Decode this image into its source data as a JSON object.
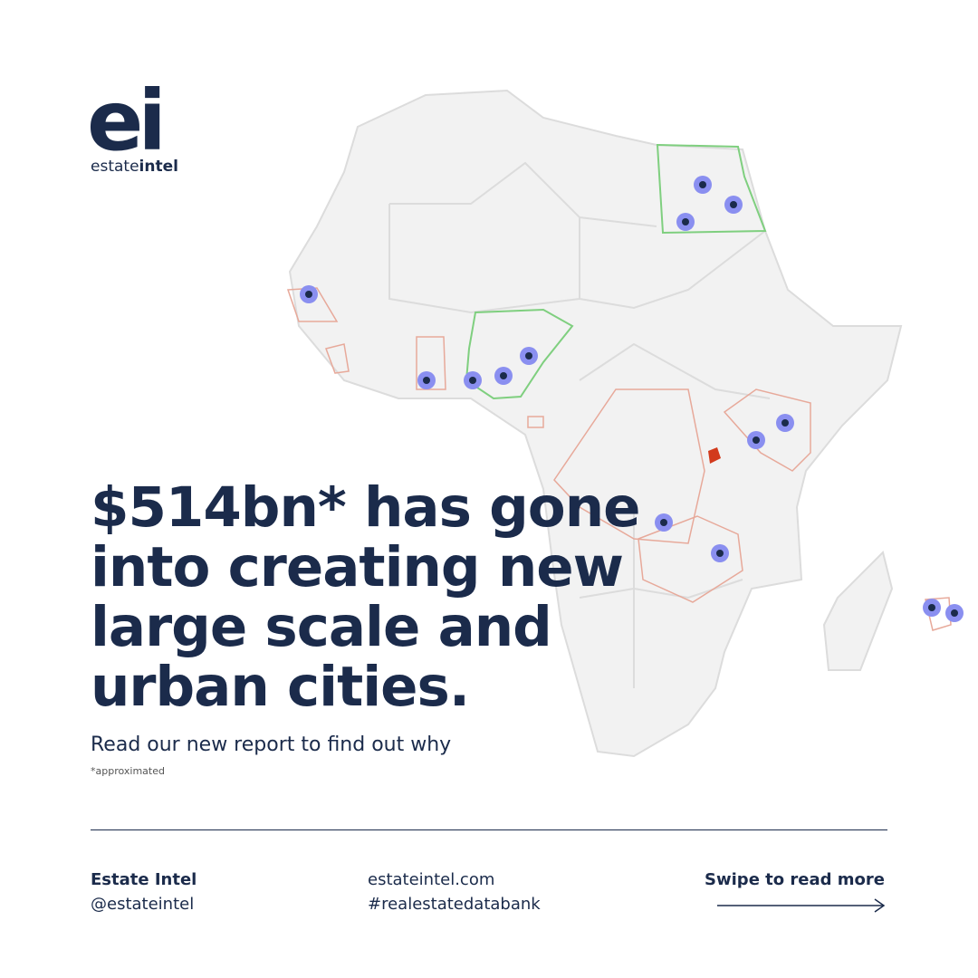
{
  "logo": {
    "mark": "ei",
    "word_light": "estate",
    "word_bold": "intel"
  },
  "headline": [
    "$514bn* has gone",
    "into creating new",
    "large scale and",
    "urban cities."
  ],
  "subtitle": "Read our new report to find out why",
  "footnote": "*approximated",
  "footer": {
    "name": "Estate Intel",
    "handle": "@estateintel",
    "website": "estateintel.com",
    "hashtag": "#realestatedatabank",
    "cta": "Swipe to read more"
  }
}
